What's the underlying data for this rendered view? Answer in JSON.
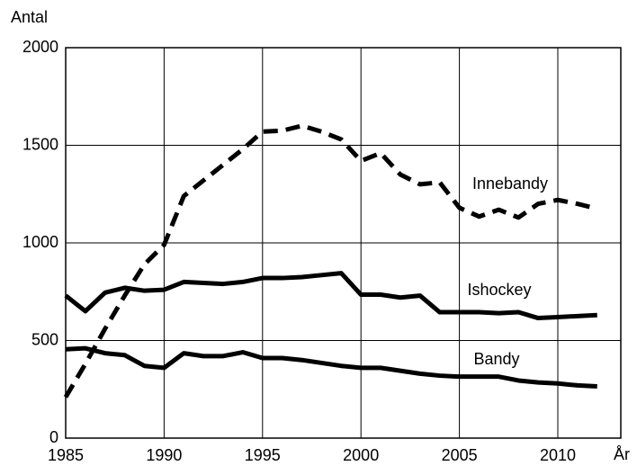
{
  "chart_data": {
    "type": "line",
    "y_label": "Antal",
    "x_label": "År",
    "x": [
      1985,
      1986,
      1987,
      1988,
      1989,
      1990,
      1991,
      1992,
      1993,
      1994,
      1995,
      1996,
      1997,
      1998,
      1999,
      2000,
      2001,
      2002,
      2003,
      2004,
      2005,
      2006,
      2007,
      2008,
      2009,
      2010,
      2011,
      2012
    ],
    "series": [
      {
        "name": "Innebandy",
        "color": "#000000",
        "style": "dashed",
        "values": [
          210,
          380,
          560,
          730,
          890,
          990,
          1240,
          1320,
          1400,
          1480,
          1570,
          1575,
          1600,
          1570,
          1530,
          1420,
          1460,
          1350,
          1300,
          1310,
          1180,
          1135,
          1170,
          1130,
          1200,
          1220,
          1200,
          1175
        ]
      },
      {
        "name": "Ishockey",
        "color": "#000000",
        "style": "solid",
        "values": [
          730,
          650,
          745,
          770,
          755,
          760,
          800,
          795,
          790,
          800,
          820,
          820,
          825,
          835,
          845,
          735,
          735,
          720,
          730,
          645,
          645,
          645,
          640,
          645,
          615,
          620,
          625,
          630
        ]
      },
      {
        "name": "Bandy",
        "color": "#000000",
        "style": "solid",
        "values": [
          455,
          460,
          435,
          425,
          370,
          360,
          435,
          420,
          420,
          440,
          410,
          410,
          400,
          385,
          370,
          360,
          360,
          345,
          330,
          320,
          315,
          315,
          315,
          295,
          285,
          280,
          270,
          265
        ]
      }
    ],
    "xlim": [
      1985,
      2013.2
    ],
    "xticks": [
      1985,
      1990,
      1995,
      2000,
      2005,
      2010
    ],
    "ylim": [
      0,
      2000
    ],
    "yticks": [
      0,
      500,
      1000,
      1500,
      2000
    ],
    "grid": true
  }
}
